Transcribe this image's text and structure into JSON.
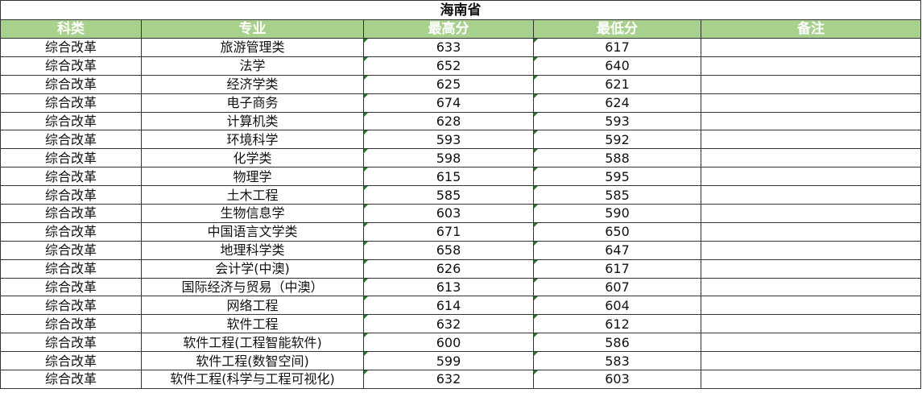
{
  "title": "海南省",
  "columns": [
    "科类",
    "专业",
    "最高分",
    "最低分",
    "备注"
  ],
  "colors": {
    "header_bg": "#a9d18e",
    "header_text": "#ffffff",
    "cell_flag": "#1e7b1e"
  },
  "rows": [
    [
      "综合改革",
      "旅游管理类",
      "633",
      "617",
      ""
    ],
    [
      "综合改革",
      "法学",
      "652",
      "640",
      ""
    ],
    [
      "综合改革",
      "经济学类",
      "625",
      "621",
      ""
    ],
    [
      "综合改革",
      "电子商务",
      "674",
      "624",
      ""
    ],
    [
      "综合改革",
      "计算机类",
      "628",
      "593",
      ""
    ],
    [
      "综合改革",
      "环境科学",
      "593",
      "592",
      ""
    ],
    [
      "综合改革",
      "化学类",
      "598",
      "588",
      ""
    ],
    [
      "综合改革",
      "物理学",
      "615",
      "595",
      ""
    ],
    [
      "综合改革",
      "土木工程",
      "585",
      "585",
      ""
    ],
    [
      "综合改革",
      "生物信息学",
      "603",
      "590",
      ""
    ],
    [
      "综合改革",
      "中国语言文学类",
      "671",
      "650",
      ""
    ],
    [
      "综合改革",
      "地理科学类",
      "658",
      "647",
      ""
    ],
    [
      "综合改革",
      "会计学(中澳)",
      "626",
      "617",
      ""
    ],
    [
      "综合改革",
      "国际经济与贸易（中澳）",
      "613",
      "607",
      ""
    ],
    [
      "综合改革",
      "网络工程",
      "614",
      "604",
      ""
    ],
    [
      "综合改革",
      "软件工程",
      "632",
      "612",
      ""
    ],
    [
      "综合改革",
      "软件工程(工程智能软件)",
      "600",
      "586",
      ""
    ],
    [
      "综合改革",
      "软件工程(数智空间)",
      "599",
      "583",
      ""
    ],
    [
      "综合改革",
      "软件工程(科学与工程可视化)",
      "632",
      "603",
      ""
    ]
  ]
}
